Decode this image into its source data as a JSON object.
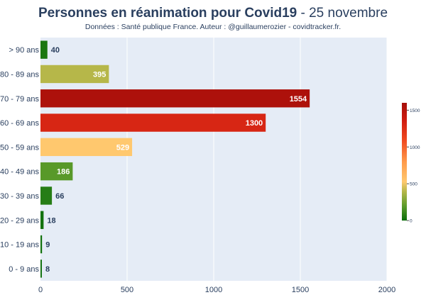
{
  "chart_data": {
    "type": "bar",
    "orientation": "horizontal",
    "title_main": "Personnes en réanimation pour Covid19",
    "title_date": " - 25 novembre",
    "subtitle": "Données : Santé publique France. Auteur : @guillaumerozier - covidtracker.fr.",
    "categories": [
      "> 90 ans",
      "80 - 89 ans",
      "70 - 79 ans",
      "60 - 69 ans",
      "50 - 59 ans",
      "40 - 49 ans",
      "30 - 39 ans",
      "20 - 29 ans",
      "10 - 19 ans",
      "0 - 9 ans"
    ],
    "values": [
      40,
      395,
      1554,
      1300,
      529,
      186,
      66,
      18,
      9,
      8
    ],
    "xlim": [
      0,
      2000
    ],
    "xticks": [
      0,
      500,
      1000,
      1500,
      2000
    ],
    "grid": true,
    "colorbar": {
      "ticks": [
        0,
        500,
        1000,
        1500
      ],
      "range": [
        0,
        1600
      ],
      "placement": "right"
    },
    "colors": {
      "plot_bg": "#e5ecf6",
      "label_dark": "#2a3f5f",
      "label_light": "#ffffff"
    }
  }
}
